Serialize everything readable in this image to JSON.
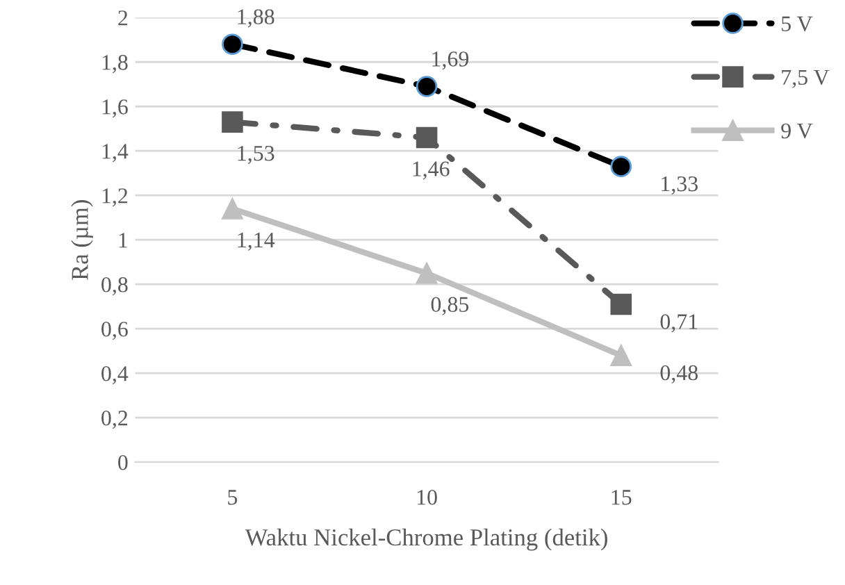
{
  "chart_data": {
    "type": "line",
    "xlabel": "Waktu Nickel-Chrome Plating (detik)",
    "ylabel": "Ra (µm)",
    "x": [
      5,
      10,
      15
    ],
    "xlim": [
      2.5,
      17.5
    ],
    "xticks": [
      5,
      10,
      15
    ],
    "series": [
      {
        "name": "5 V",
        "color": "#000000",
        "values": [
          1.88,
          1.69,
          1.33
        ],
        "value_labels": [
          "1,88",
          "1,69",
          "1,33"
        ],
        "line_style": "dashed",
        "marker": "circle"
      },
      {
        "name": "7,5 V",
        "color": "#595959",
        "values": [
          1.53,
          1.46,
          0.71
        ],
        "value_labels": [
          "1,53",
          "1,46",
          "0,71"
        ],
        "line_style": "dotted",
        "marker": "square"
      },
      {
        "name": "9 V",
        "color": "#bfbfbf",
        "values": [
          1.14,
          0.85,
          0.48
        ],
        "value_labels": [
          "1,14",
          "0,85",
          "0,48"
        ],
        "line_style": "solid",
        "marker": "triangle"
      }
    ],
    "ylim": [
      0,
      2
    ],
    "yticks": [
      0,
      {
        "value": 0.2,
        "label": "0,2"
      },
      {
        "value": 0.4,
        "label": "0,4"
      },
      {
        "value": 0.6,
        "label": "0,6"
      },
      {
        "value": 0.8,
        "label": "0,8"
      },
      1,
      {
        "value": 1.2,
        "label": "1,2"
      },
      {
        "value": 1.4,
        "label": "1,4"
      },
      {
        "value": 1.6,
        "label": "1,6"
      },
      {
        "value": 1.8,
        "label": "1,8"
      },
      2
    ],
    "grid": "y",
    "legend": "right"
  }
}
